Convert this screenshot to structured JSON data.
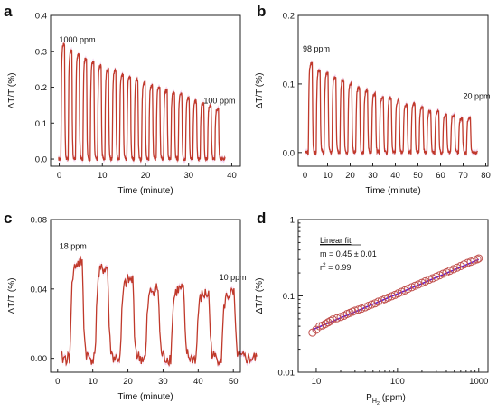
{
  "colors": {
    "trace": "#c0392b",
    "trace_dark": "#8b4513",
    "envelope": "#f0c8ec",
    "fit": "#6a1fc8",
    "marker": "#c0504d"
  },
  "chart_data": [
    {
      "panel": "a",
      "type": "line",
      "xlabel": "Time (minute)",
      "ylabel": "ΔT/T (%)",
      "xlim": [
        -2,
        42
      ],
      "ylim": [
        -0.02,
        0.4
      ],
      "xticks": [
        0,
        10,
        20,
        30,
        40
      ],
      "xtick_labels": [
        "0",
        "10",
        "20",
        "30",
        "40"
      ],
      "yticks": [
        0.0,
        0.1,
        0.2,
        0.3,
        0.4
      ],
      "ytick_labels": [
        "0.0",
        "0.1",
        "0.2",
        "0.3",
        "0.4"
      ],
      "pulse_period_min": 1.7,
      "pulse_start_min": 0.4,
      "pulse_peaks": [
        0.32,
        0.3,
        0.29,
        0.28,
        0.27,
        0.26,
        0.25,
        0.245,
        0.235,
        0.23,
        0.22,
        0.215,
        0.205,
        0.2,
        0.19,
        0.185,
        0.18,
        0.17,
        0.16,
        0.155,
        0.15,
        0.14
      ],
      "annotations": [
        {
          "text": "1000 ppm",
          "x": 0.0,
          "y": 0.325
        },
        {
          "text": "100 ppm",
          "x": 33.5,
          "y": 0.155
        }
      ]
    },
    {
      "panel": "b",
      "type": "line",
      "xlabel": "Time (minute)",
      "ylabel": "ΔT/T (%)",
      "xlim": [
        -3,
        81
      ],
      "ylim": [
        -0.02,
        0.2
      ],
      "xticks": [
        0,
        10,
        20,
        30,
        40,
        50,
        60,
        70,
        80
      ],
      "xtick_labels": [
        "0",
        "10",
        "20",
        "30",
        "40",
        "50",
        "60",
        "70",
        "80"
      ],
      "yticks": [
        0.0,
        0.1,
        0.2
      ],
      "ytick_labels": [
        "0.0",
        "0.1",
        "0.2"
      ],
      "pulse_period_min": 3.5,
      "pulse_start_min": 1.5,
      "pulse_peaks": [
        0.13,
        0.12,
        0.115,
        0.11,
        0.105,
        0.1,
        0.095,
        0.09,
        0.085,
        0.08,
        0.08,
        0.075,
        0.07,
        0.07,
        0.065,
        0.06,
        0.06,
        0.055,
        0.055,
        0.05,
        0.05
      ],
      "annotations": [
        {
          "text": "98 ppm",
          "x": -1.0,
          "y": 0.147
        },
        {
          "text": "20 ppm",
          "x": 70.0,
          "y": 0.078
        }
      ]
    },
    {
      "panel": "c",
      "type": "line",
      "xlabel": "Time (minute)",
      "ylabel": "ΔT/T (%)",
      "xlim": [
        -2,
        52
      ],
      "ylim": [
        -0.008,
        0.08
      ],
      "xticks": [
        0,
        10,
        20,
        30,
        40,
        50
      ],
      "xtick_labels": [
        "0",
        "10",
        "20",
        "30",
        "40",
        "50"
      ],
      "yticks": [
        0.0,
        0.04,
        0.08
      ],
      "ytick_labels": [
        "0.00",
        "0.04",
        "0.08"
      ],
      "pulse_period_min": 7.2,
      "pulse_start_min": 3.5,
      "pulse_peaks": [
        0.055,
        0.052,
        0.045,
        0.04,
        0.04,
        0.037,
        0.037
      ],
      "annotations": [
        {
          "text": "18 ppm",
          "x": 0.5,
          "y": 0.063
        },
        {
          "text": "10 ppm",
          "x": 46.0,
          "y": 0.045
        }
      ]
    },
    {
      "panel": "d",
      "type": "scatter",
      "xlabel_main": "P",
      "xlabel_sub": "H",
      "xlabel_subsub": "2",
      "xlabel_unit": " (ppm)",
      "ylabel": "ΔT/T (%)",
      "xscale": "log",
      "yscale": "log",
      "xlim": [
        6,
        1300
      ],
      "ylim": [
        0.01,
        1
      ],
      "xticks": [
        10,
        100,
        1000
      ],
      "xtick_labels": [
        "10",
        "100",
        "1000"
      ],
      "yticks": [
        0.01,
        0.1,
        1
      ],
      "ytick_labels": [
        "0.01",
        "0.1",
        "1"
      ],
      "x": [
        9,
        10,
        11,
        12,
        13,
        14,
        15,
        16,
        18,
        20,
        22,
        24,
        26,
        28,
        30,
        33,
        36,
        40,
        44,
        48,
        53,
        58,
        64,
        70,
        77,
        85,
        93,
        102,
        112,
        123,
        135,
        150,
        165,
        180,
        200,
        220,
        245,
        270,
        300,
        330,
        365,
        400,
        440,
        490,
        540,
        600,
        660,
        730,
        800,
        880,
        960,
        1000
      ],
      "y": [
        0.033,
        0.036,
        0.04,
        0.041,
        0.043,
        0.045,
        0.047,
        0.049,
        0.051,
        0.053,
        0.055,
        0.058,
        0.06,
        0.062,
        0.064,
        0.066,
        0.068,
        0.071,
        0.074,
        0.077,
        0.08,
        0.084,
        0.087,
        0.091,
        0.095,
        0.099,
        0.103,
        0.108,
        0.113,
        0.118,
        0.124,
        0.13,
        0.136,
        0.141,
        0.148,
        0.155,
        0.163,
        0.17,
        0.178,
        0.186,
        0.195,
        0.203,
        0.213,
        0.224,
        0.234,
        0.246,
        0.258,
        0.27,
        0.28,
        0.292,
        0.302,
        0.31
      ],
      "fit": {
        "slope": 0.45,
        "intercept_at_1ppm": 0.0134
      },
      "legend": {
        "title": "Linear fit",
        "line1": "m = 0.45 ± 0.01",
        "line2_main": "r",
        "line2_sup": "2",
        "line2_rest": " = 0.99"
      }
    }
  ]
}
